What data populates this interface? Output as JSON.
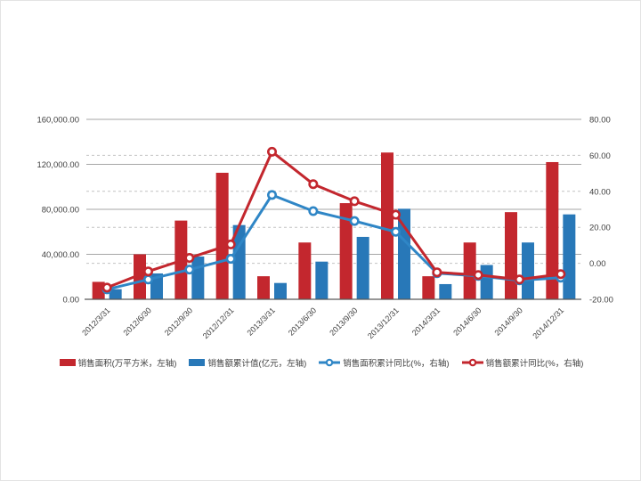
{
  "chart_data": {
    "type": "combo-bar-line",
    "title": "",
    "categories": [
      "2012/3/31",
      "2012/6/30",
      "2012/9/30",
      "2012/12/31",
      "2013/3/31",
      "2013/6/30",
      "2013/9/30",
      "2013/12/31",
      "2014/3/31",
      "2014/6/30",
      "2014/9/30",
      "2014/12/31"
    ],
    "series": [
      {
        "name": "销售面积(万平方米，左轴)",
        "type": "bar",
        "axis": "left",
        "color": "#c3272e",
        "values": [
          15500,
          40000,
          70000,
          112500,
          20500,
          50500,
          85500,
          130500,
          20500,
          50500,
          77500,
          122000
        ]
      },
      {
        "name": "销售额累计值(亿元，左轴)",
        "type": "bar",
        "axis": "left",
        "color": "#2878b8",
        "values": [
          9000,
          23000,
          38000,
          66000,
          14500,
          33500,
          55500,
          80500,
          13500,
          30500,
          50500,
          75500
        ]
      },
      {
        "name": "销售面积累计同比(%，右轴)",
        "type": "line",
        "axis": "right",
        "color": "#2f86c6",
        "values": [
          -14.5,
          -9.0,
          -3.5,
          2.5,
          38.0,
          29.0,
          23.5,
          17.5,
          -5.5,
          -7.0,
          -9.5,
          -8.0
        ]
      },
      {
        "name": "销售额累计同比(%，右轴)",
        "type": "line",
        "axis": "right",
        "color": "#c3272e",
        "values": [
          -13.5,
          -4.5,
          3.0,
          10.5,
          62.0,
          44.0,
          34.5,
          27.0,
          -5.0,
          -6.5,
          -9.0,
          -6.0
        ]
      }
    ],
    "left_axis": {
      "min": 0,
      "max": 160000,
      "tick_values": [
        0,
        40000,
        80000,
        120000,
        160000
      ],
      "tick_labels": [
        "0.00",
        "40,000.00",
        "80,000.00",
        "120,000.00",
        "160,000.00"
      ]
    },
    "right_axis": {
      "min": -20,
      "max": 80,
      "tick_values": [
        -20,
        0,
        20,
        40,
        60,
        80
      ],
      "tick_labels": [
        "-20.00",
        "0.00",
        "20.00",
        "40.00",
        "60.00",
        "80.00"
      ]
    },
    "grid": {
      "solid_left_tick_lines": [
        40000,
        80000,
        120000,
        160000
      ],
      "dashed_right_tick_lines": [
        0,
        20,
        40,
        60
      ]
    },
    "legend_position": "bottom"
  },
  "colors": {
    "grid_solid": "#a6a6a6",
    "grid_dashed": "#c2c2c2",
    "axis_line": "#595959",
    "tick_text": "#404040",
    "background": "#ffffff"
  }
}
